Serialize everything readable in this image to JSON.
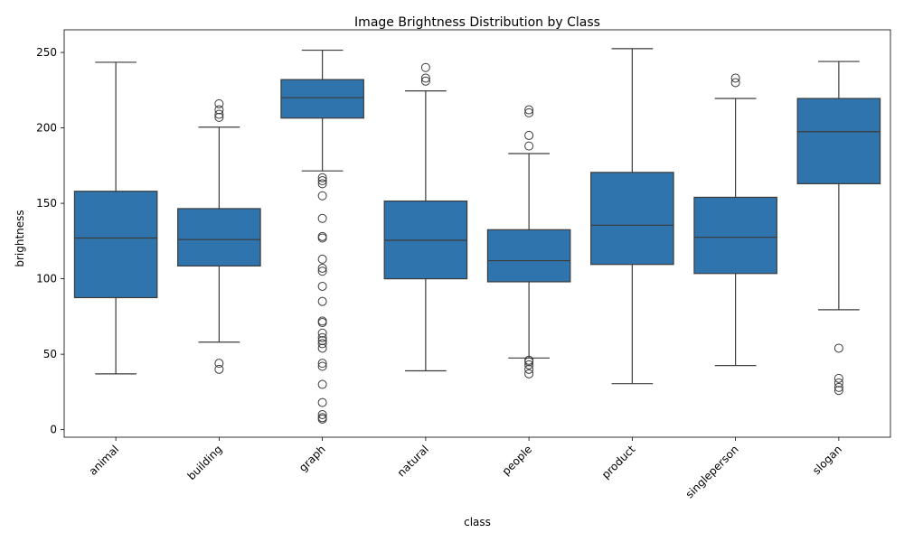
{
  "chart_data": {
    "type": "box",
    "title": "Image Brightness Distribution by Class",
    "xlabel": "class",
    "ylabel": "brightness",
    "ylim": [
      -5,
      265
    ],
    "yticks": [
      0,
      50,
      100,
      150,
      200,
      250
    ],
    "ytick_labels": [
      "0",
      "50",
      "100",
      "150",
      "200",
      "250"
    ],
    "grid": false,
    "box_color": "#2f74ad",
    "line_color": "#3b3b3b",
    "categories": [
      "animal",
      "building",
      "graph",
      "natural",
      "people",
      "product",
      "singleperson",
      "slogan"
    ],
    "boxes": [
      {
        "whisker_low": 37,
        "q1": 87.5,
        "median": 127,
        "q3": 158,
        "whisker_high": 243.5,
        "outliers": []
      },
      {
        "whisker_low": 58,
        "q1": 108.5,
        "median": 126,
        "q3": 146.5,
        "whisker_high": 200.5,
        "outliers": [
          40,
          44,
          207,
          209,
          212,
          216
        ]
      },
      {
        "whisker_low": 171.5,
        "q1": 206.5,
        "median": 220,
        "q3": 232,
        "whisker_high": 251.5,
        "outliers": [
          7,
          8,
          10,
          18,
          30,
          42,
          44,
          54,
          57,
          59,
          61,
          64,
          71,
          72,
          85,
          95,
          105,
          107,
          113,
          127,
          128,
          140,
          155,
          163,
          165,
          167
        ]
      },
      {
        "whisker_low": 39,
        "q1": 100,
        "median": 125.5,
        "q3": 151.5,
        "whisker_high": 224.5,
        "outliers": [
          231,
          233,
          240
        ]
      },
      {
        "whisker_low": 47.5,
        "q1": 98,
        "median": 112,
        "q3": 132.5,
        "whisker_high": 183,
        "outliers": [
          37,
          40,
          43,
          45,
          46,
          188,
          195,
          210,
          212
        ]
      },
      {
        "whisker_low": 30.5,
        "q1": 109.5,
        "median": 135.5,
        "q3": 170.5,
        "whisker_high": 252.5,
        "outliers": []
      },
      {
        "whisker_low": 42.5,
        "q1": 103.5,
        "median": 127.5,
        "q3": 154,
        "whisker_high": 219.5,
        "outliers": [
          230,
          233
        ]
      },
      {
        "whisker_low": 79.5,
        "q1": 163,
        "median": 197.5,
        "q3": 219.5,
        "whisker_high": 244,
        "outliers": [
          26,
          28,
          31,
          34,
          54
        ]
      }
    ]
  }
}
